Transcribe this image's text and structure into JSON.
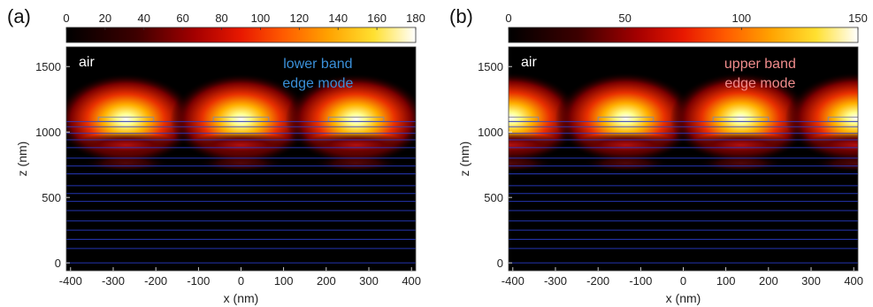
{
  "chart_data": [
    {
      "type": "heatmap",
      "panel_label": "(a)",
      "xlabel": "x (nm)",
      "ylabel": "z (nm)",
      "xlim": [
        -410,
        410
      ],
      "ylim": [
        -60,
        1650
      ],
      "x_ticks": [
        -400,
        -300,
        -200,
        -100,
        0,
        100,
        200,
        300,
        400
      ],
      "y_ticks": [
        0,
        500,
        1000,
        1500
      ],
      "colorbar": {
        "min": 0,
        "max": 180,
        "ticks": [
          0,
          20,
          40,
          60,
          80,
          100,
          120,
          140,
          160,
          180
        ]
      },
      "annotations": [
        {
          "text": "air",
          "color": "#ffffff"
        },
        {
          "text": "lower band",
          "color": "#3a8fd8"
        },
        {
          "text": "edge mode",
          "color": "#3a8fd8"
        }
      ],
      "period_nm": 270,
      "grating_centers_nm": [
        -270,
        0,
        270
      ],
      "grating_halfwidth_nm": 65,
      "field_maxima": [
        {
          "x_nm": -270,
          "z_nm": 1110,
          "value": 180
        },
        {
          "x_nm": 0,
          "z_nm": 1110,
          "value": 180
        },
        {
          "x_nm": 270,
          "z_nm": 1110,
          "value": 180
        }
      ],
      "layer_interfaces_nm": [
        1080,
        1040,
        990,
        940,
        880,
        800,
        740,
        680,
        590,
        530,
        470,
        400,
        320,
        250,
        180,
        110,
        0
      ]
    },
    {
      "type": "heatmap",
      "panel_label": "(b)",
      "xlabel": "x (nm)",
      "ylabel": "z (nm)",
      "xlim": [
        -410,
        410
      ],
      "ylim": [
        -60,
        1650
      ],
      "x_ticks": [
        -400,
        -300,
        -200,
        -100,
        0,
        100,
        200,
        300,
        400
      ],
      "y_ticks": [
        0,
        500,
        1000,
        1500
      ],
      "colorbar": {
        "min": 0,
        "max": 150,
        "ticks": [
          0,
          50,
          100,
          150
        ]
      },
      "annotations": [
        {
          "text": "air",
          "color": "#ffffff"
        },
        {
          "text": "upper band",
          "color": "#f08c8c"
        },
        {
          "text": "edge mode",
          "color": "#f08c8c"
        }
      ],
      "period_nm": 270,
      "grating_centers_nm": [
        -405,
        -135,
        135,
        405
      ],
      "grating_halfwidth_nm": 65,
      "field_maxima": [
        {
          "x_nm": -405,
          "z_nm": 1120,
          "value": 150
        },
        {
          "x_nm": -135,
          "z_nm": 1120,
          "value": 150
        },
        {
          "x_nm": 135,
          "z_nm": 1120,
          "value": 150
        },
        {
          "x_nm": 405,
          "z_nm": 1120,
          "value": 150
        }
      ],
      "layer_interfaces_nm": [
        1080,
        1040,
        990,
        940,
        880,
        800,
        740,
        680,
        590,
        530,
        470,
        400,
        320,
        250,
        180,
        110,
        0
      ]
    }
  ]
}
